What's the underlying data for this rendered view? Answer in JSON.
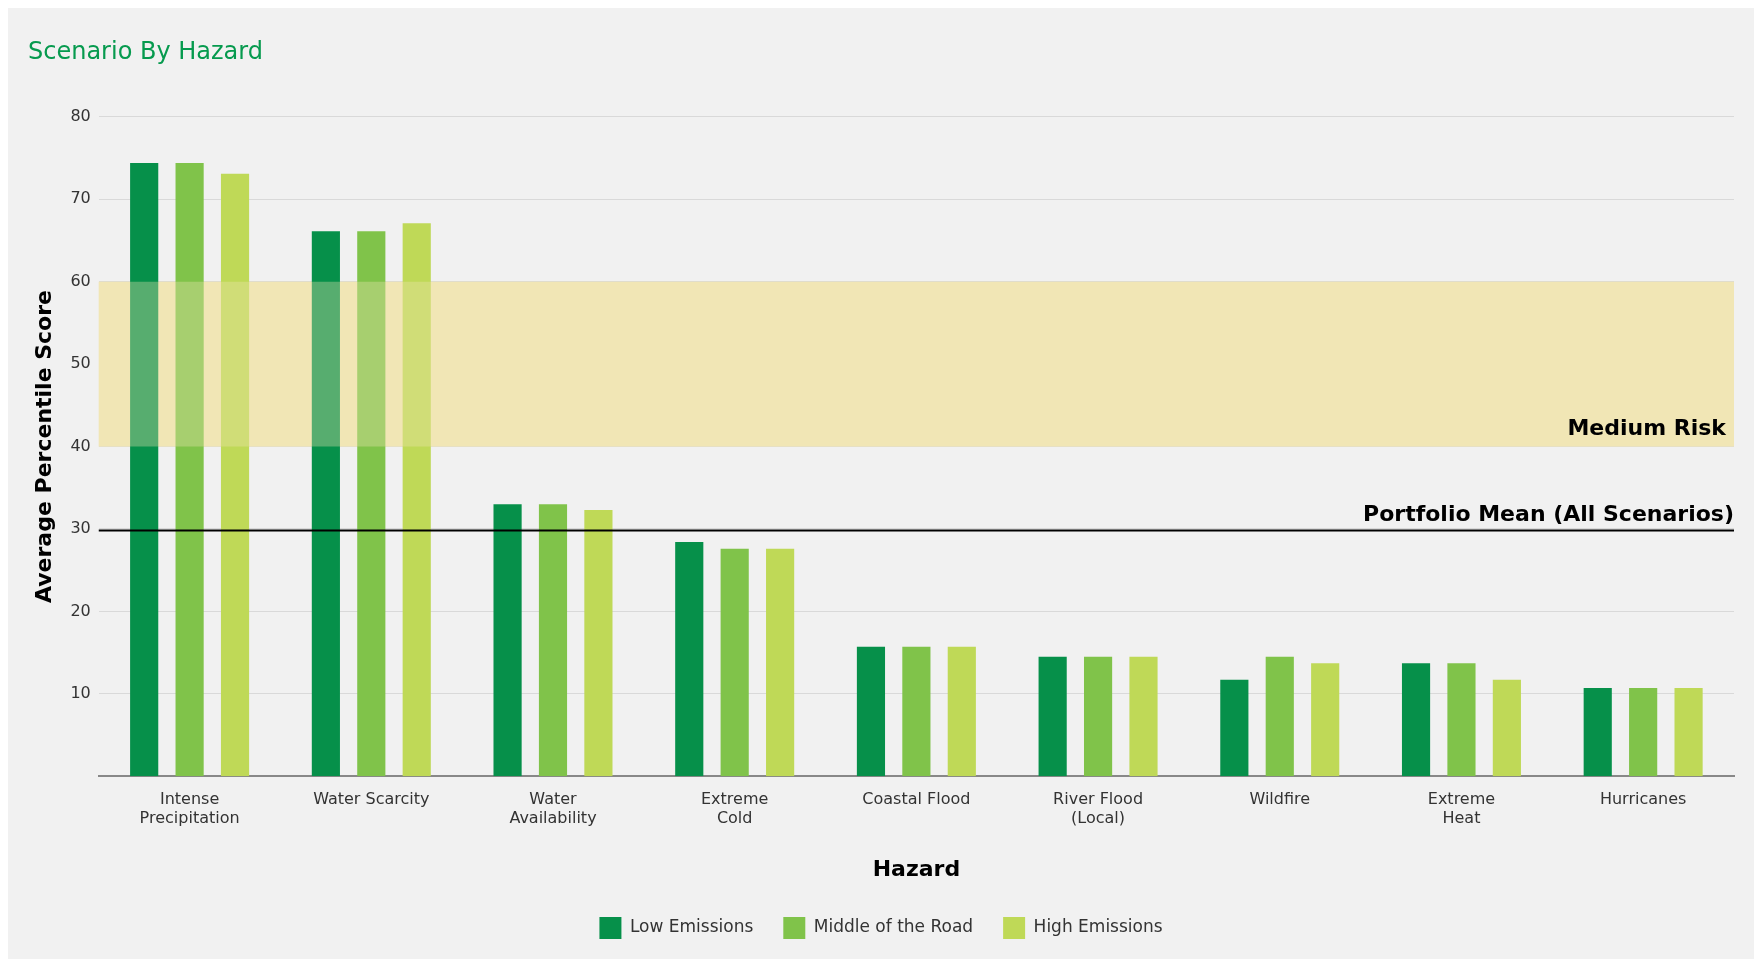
{
  "chart_data": {
    "type": "bar",
    "title": "Scenario By Hazard",
    "xlabel": "Hazard",
    "ylabel": "Average Percentile Score",
    "categories": [
      "Intense\nPrecipitation",
      "Water Scarcity",
      "Water\nAvailability",
      "Extreme\nCold",
      "Coastal Flood",
      "River Flood\n(Local)",
      "Wildfire",
      "Extreme\nHeat",
      "Hurricanes"
    ],
    "series": [
      {
        "name": "Low Emissions",
        "color": "#06904a",
        "values": [
          74.4,
          66.1,
          33,
          28.4,
          15.7,
          14.5,
          11.7,
          13.7,
          10.7
        ]
      },
      {
        "name": "Middle of the Road",
        "color": "#80c34a",
        "values": [
          74.4,
          66.1,
          33,
          27.6,
          15.7,
          14.5,
          14.5,
          13.7,
          10.7
        ]
      },
      {
        "name": "High Emissions",
        "color": "#bfd957",
        "values": [
          73.1,
          67.1,
          32.3,
          27.6,
          15.7,
          14.5,
          13.7,
          11.7,
          10.7
        ]
      }
    ],
    "ylim": [
      0,
      80
    ],
    "yticks": [
      10,
      20,
      30,
      40,
      50,
      60,
      70,
      80
    ],
    "grid": "y",
    "legend": "bottom",
    "ref_lines": [
      {
        "axis": "y",
        "value": 29.8,
        "label": "Portfolio Mean (All Scenarios)",
        "color": "#000000"
      }
    ],
    "bands": [
      {
        "axis": "y",
        "from": 40,
        "to": 60,
        "label": "Medium Risk",
        "color": "#f2e6b5"
      }
    ]
  }
}
